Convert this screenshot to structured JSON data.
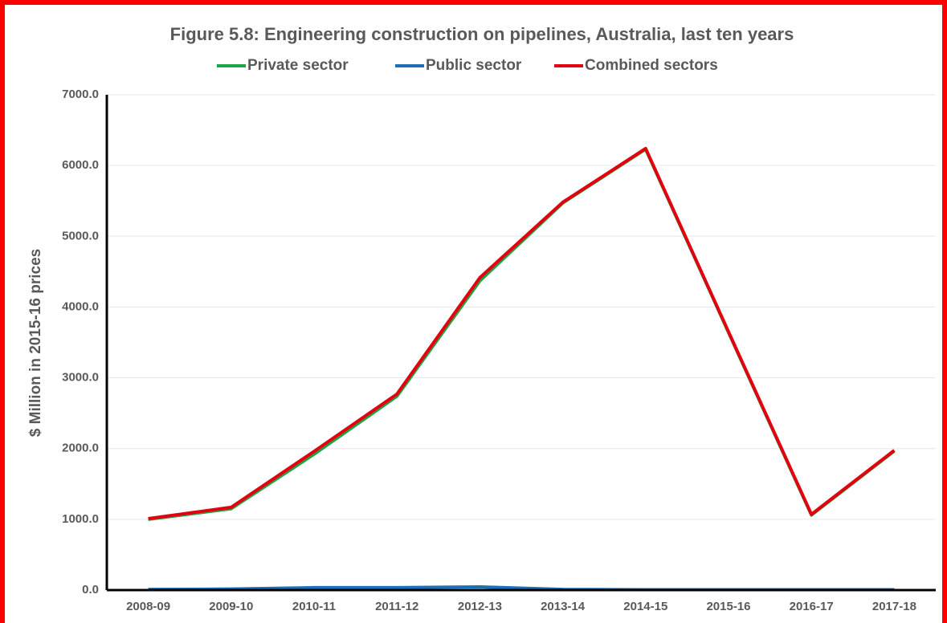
{
  "chart_data": {
    "type": "line",
    "title": "Figure 5.8: Engineering construction on pipelines, Australia, last ten years",
    "y_axis_label": "$ Million in 2015-16 prices",
    "categories": [
      "2008-09",
      "2009-10",
      "2010-11",
      "2011-12",
      "2012-13",
      "2013-14",
      "2014-15",
      "2015-16",
      "2016-17",
      "2017-18"
    ],
    "series": [
      {
        "name": "Private sector",
        "color": "#1fa344",
        "values": [
          1000,
          1150,
          1920,
          2740,
          4370,
          5470,
          6230,
          3640,
          1060,
          1965
        ]
      },
      {
        "name": "Public sector",
        "color": "#1f6fb4",
        "values": [
          10,
          15,
          35,
          35,
          45,
          10,
          5,
          5,
          5,
          5
        ]
      },
      {
        "name": "Combined sectors",
        "color": "#e3000f",
        "values": [
          1010,
          1170,
          1960,
          2770,
          4415,
          5480,
          6240,
          3650,
          1070,
          1975
        ]
      }
    ],
    "ylim": [
      0,
      7000
    ],
    "yticks": [
      {
        "value": 0,
        "label": "0.0"
      },
      {
        "value": 1000,
        "label": "1000.0"
      },
      {
        "value": 2000,
        "label": "2000.0"
      },
      {
        "value": 3000,
        "label": "3000.0"
      },
      {
        "value": 4000,
        "label": "4000.0"
      },
      {
        "value": 5000,
        "label": "5000.0"
      },
      {
        "value": 6000,
        "label": "6000.0"
      },
      {
        "value": 7000,
        "label": "7000.0"
      }
    ],
    "grid": true,
    "legend": "top"
  }
}
